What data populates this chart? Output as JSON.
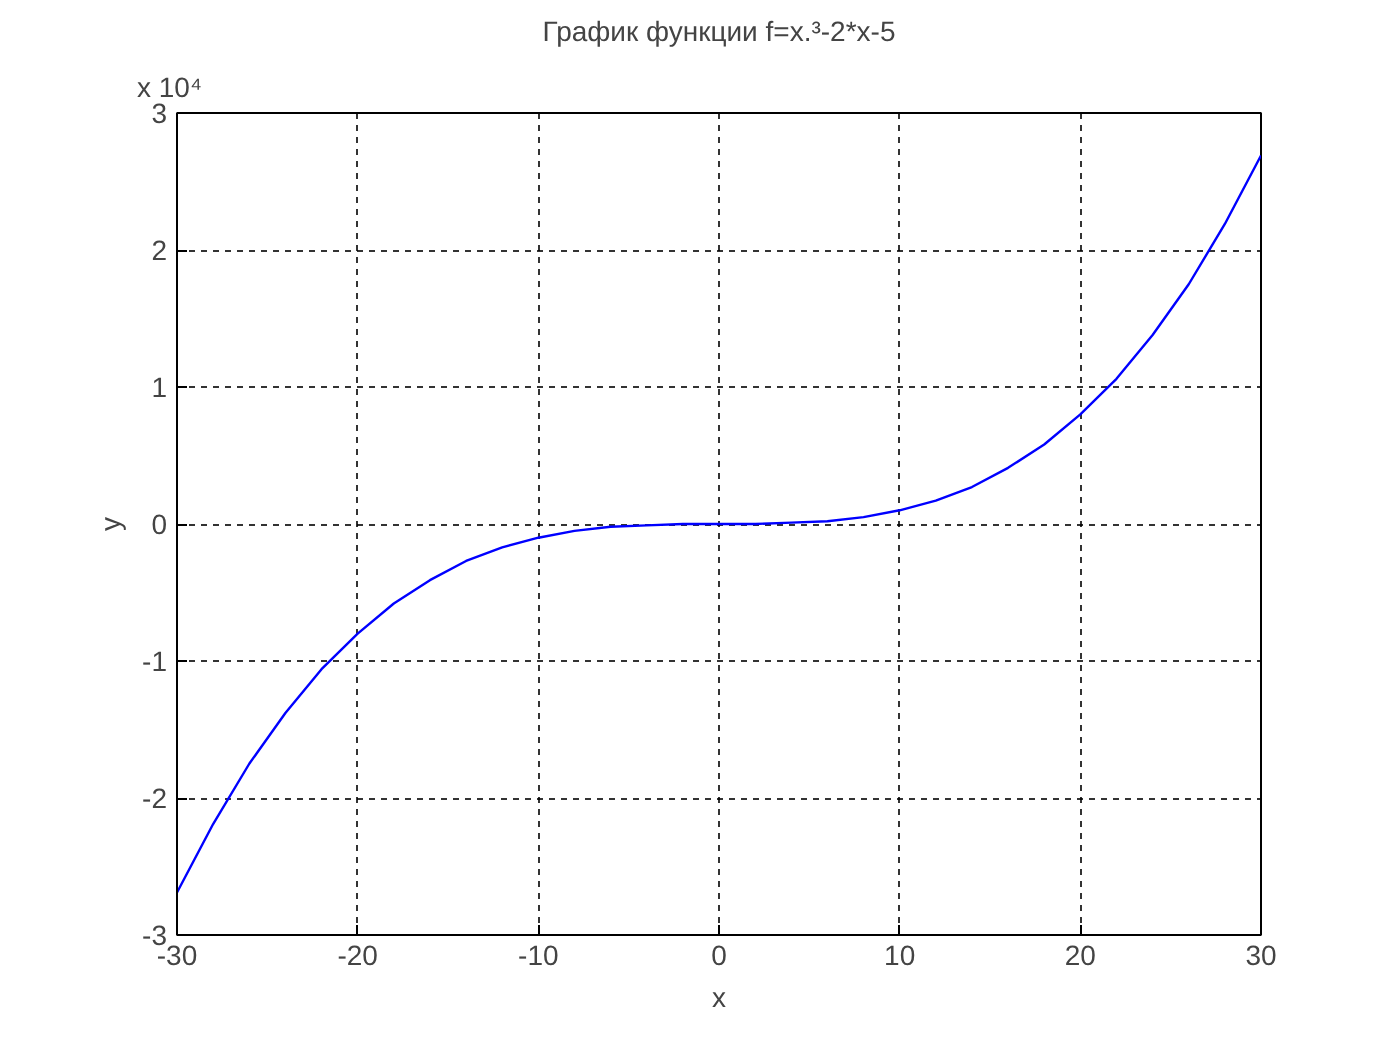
{
  "chart_data": {
    "type": "line",
    "title": "График функции f=x.³-2*x-5",
    "xlabel": "x",
    "ylabel": "y",
    "annotations": [
      "x 10⁴"
    ],
    "x": [
      -30,
      -28,
      -26,
      -24,
      -22,
      -20,
      -18,
      -16,
      -14,
      -12,
      -10,
      -8,
      -6,
      -4,
      -2,
      0,
      2,
      4,
      6,
      8,
      10,
      12,
      14,
      16,
      18,
      20,
      22,
      24,
      26,
      28,
      30
    ],
    "series": [
      {
        "color": "#0000ff",
        "values": [
          -2.69,
          -2.19,
          -1.75,
          -1.38,
          -1.06,
          -0.8,
          -0.58,
          -0.41,
          -0.27,
          -0.17,
          -0.1,
          -0.05,
          -0.02,
          -0.01,
          0,
          0,
          0,
          0.01,
          0.02,
          0.05,
          0.1,
          0.17,
          0.27,
          0.41,
          0.58,
          0.8,
          1.06,
          1.38,
          1.75,
          2.19,
          2.69
        ]
      }
    ],
    "xlim": [
      -30,
      30
    ],
    "xticks": [
      -30,
      -20,
      -10,
      0,
      10,
      20,
      30
    ],
    "ylim": [
      -3,
      3
    ],
    "yticks": [
      -3,
      -2,
      -1,
      0,
      1,
      2,
      3
    ],
    "grid": true,
    "line_style": "solid"
  }
}
